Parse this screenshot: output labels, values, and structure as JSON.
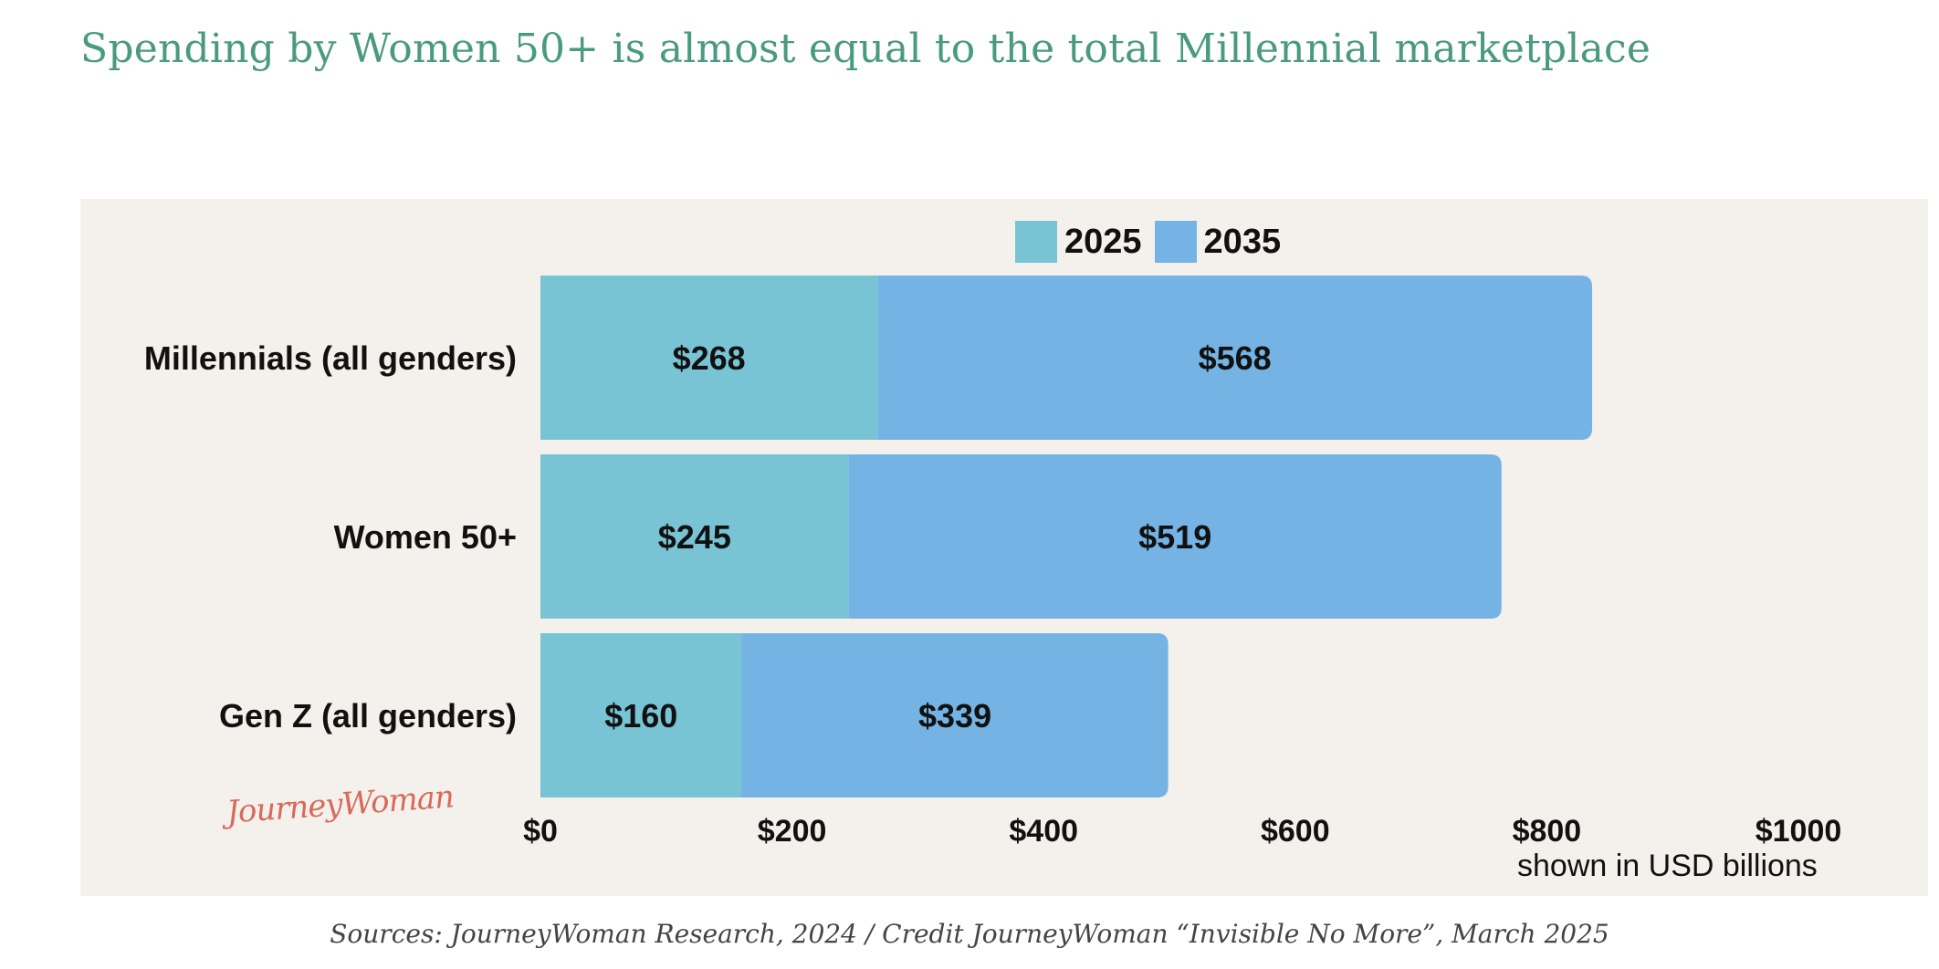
{
  "title": "Spending by Women 50+ is almost equal to the total Millennial marketplace",
  "source": "Sources: JourneyWoman Research, 2024 / Credit JourneyWoman “Invisible No More”, March 2025",
  "logo": "JourneyWoman",
  "unit_note": "shown in USD billions",
  "colors": {
    "title": "#4a9a80",
    "panel": "#f4f1ec",
    "series_2025": "#78c4d4",
    "series_2035": "#74b3e4"
  },
  "chart_data": {
    "type": "bar",
    "orientation": "horizontal",
    "stacked": true,
    "categories": [
      "Millennials (all genders)",
      "Women 50+",
      "Gen Z (all genders)"
    ],
    "series": [
      {
        "name": "2025",
        "values": [
          268,
          245,
          160
        ],
        "labels": [
          "$268",
          "$245",
          "$160"
        ]
      },
      {
        "name": "2035",
        "values": [
          568,
          519,
          339
        ],
        "labels": [
          "$568",
          "$519",
          "$339"
        ]
      }
    ],
    "xlim": [
      0,
      1000
    ],
    "xticks": [
      0,
      200,
      400,
      600,
      800,
      1000
    ],
    "xtick_labels": [
      "$0",
      "$200",
      "$400",
      "$600",
      "$800",
      "$1000"
    ],
    "legend_position": "top",
    "grid": false
  }
}
